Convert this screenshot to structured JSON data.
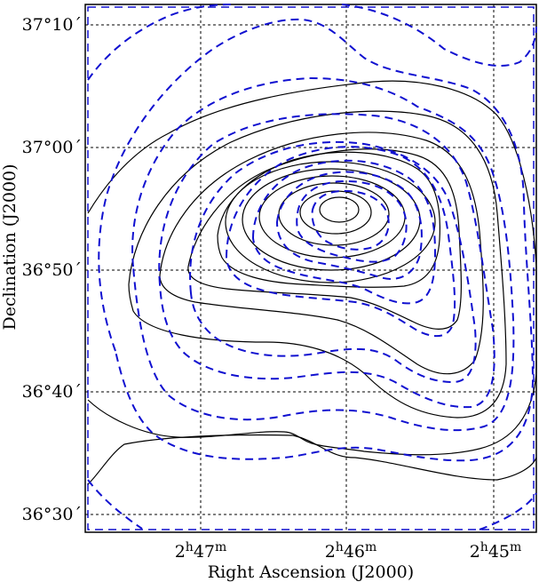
{
  "plot": {
    "xlabel": "Right Ascension (J2000)",
    "ylabel": "Declination (J2000)",
    "ra_ticks": [
      {
        "h": "2",
        "m": "47"
      },
      {
        "h": "2",
        "m": "46"
      },
      {
        "h": "2",
        "m": "45"
      }
    ],
    "dec_ticks": [
      "37°10´",
      "37°00´",
      "36°50´",
      "36°40´",
      "36°30´"
    ],
    "colors": {
      "solid_contours": "#000000",
      "dashed_contours": "#1010d0",
      "grid": "#000000",
      "frame_inner": "#1010d0"
    },
    "contour_sets": [
      {
        "style": "solid",
        "count": 11
      },
      {
        "style": "dashed",
        "count": 12
      }
    ]
  }
}
